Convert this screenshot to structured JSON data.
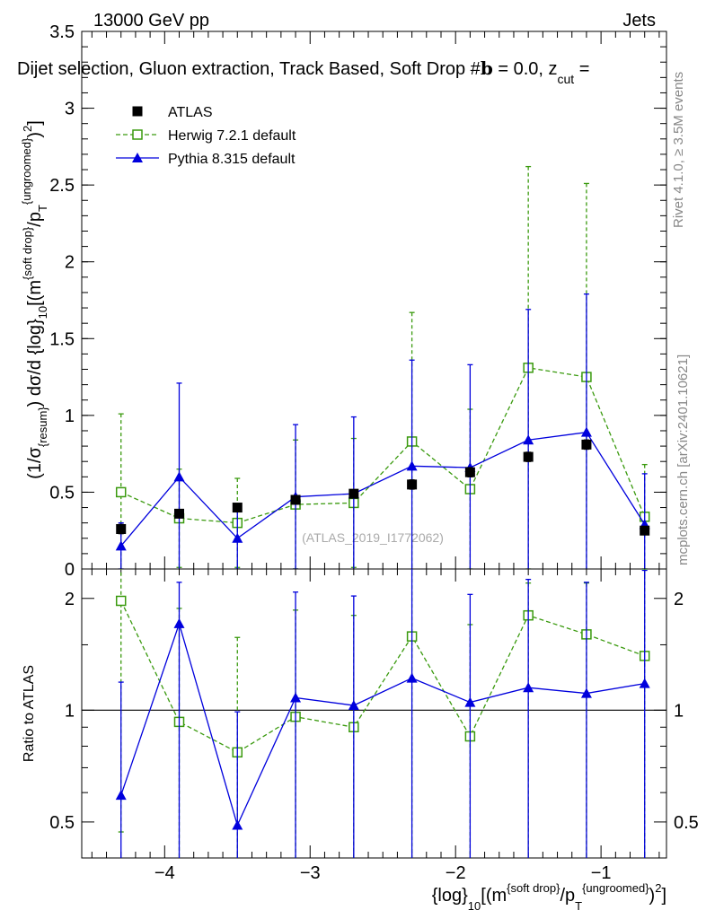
{
  "header": {
    "left": "13000 GeV pp",
    "right": "Jets",
    "subtitle": "Dijet selection, Gluon extraction, Track Based, Soft Drop #b = 0.0, z_cut =",
    "subtitle_main": "Dijet selection, Gluon extraction, Track Based, Soft Drop #",
    "subtitle_beta": "b",
    "subtitle_tail": " = 0.0, z",
    "subtitle_cut": "cut",
    "subtitle_eq": " ="
  },
  "side": {
    "rivet": "Rivet 4.1.0, ≥ 3.5M events",
    "mcplots": "mcplots.cern.ch [arXiv:2401.10621]"
  },
  "watermark": "(ATLAS_2019_I1772062)",
  "colors": {
    "atlas": "#000000",
    "herwig": "#3a9a0e",
    "pythia": "#0000dd",
    "reference": "#000000"
  },
  "chart_data": [
    {
      "type": "scatter",
      "panel": "main",
      "ylabel": "(1/σ_{resum}) dσ/d {log}_10[(m^{soft drop}/p_T^{ungroomed})^2]",
      "ylabel_parts": {
        "a": "(1/σ",
        "a_sub": "{resum}",
        "b": ") dσ/d {log}",
        "b_sub": "10",
        "c": "[(m",
        "c_sup": "{soft drop}",
        "d": "/p",
        "d_sub": "T",
        "d_sup": "{ungroomed}",
        "e": ")",
        "e_sup": "2",
        "f": "]"
      },
      "xlim": [
        -4.57,
        -0.55
      ],
      "ylim": [
        0,
        3.5
      ],
      "yticks": [
        0,
        0.5,
        1,
        1.5,
        2,
        2.5,
        3,
        3.5
      ],
      "ytick_labels": [
        "0",
        "0.5",
        "1",
        "1.5",
        "2",
        "2.5",
        "3",
        "3.5"
      ],
      "legend": [
        "ATLAS",
        "Herwig 7.2.1 default",
        "Pythia 8.315 default"
      ],
      "legend_position": "top-left",
      "x": [
        -4.3,
        -3.9,
        -3.5,
        -3.1,
        -2.7,
        -2.3,
        -1.9,
        -1.5,
        -1.1,
        -0.7
      ],
      "series": [
        {
          "name": "ATLAS",
          "style": "filled-square",
          "values": [
            0.26,
            0.36,
            0.4,
            0.45,
            0.49,
            0.55,
            0.63,
            0.73,
            0.81,
            0.25
          ],
          "errors": [
            0.03,
            0.02,
            0.02,
            0.02,
            0.02,
            0.03,
            0.03,
            0.03,
            0.03,
            0.02
          ]
        },
        {
          "name": "Herwig 7.2.1 default",
          "style": "open-square-dashed",
          "values": [
            0.5,
            0.33,
            0.3,
            0.42,
            0.43,
            0.83,
            0.52,
            1.31,
            1.25,
            0.34
          ],
          "errors": [
            0.51,
            0.32,
            0.29,
            0.42,
            0.42,
            0.84,
            0.52,
            1.31,
            1.26,
            0.34
          ]
        },
        {
          "name": "Pythia 8.315 default",
          "style": "filled-triangle-solid",
          "values": [
            0.15,
            0.6,
            0.2,
            0.47,
            0.49,
            0.67,
            0.66,
            0.84,
            0.89,
            0.29
          ],
          "errors": [
            0.15,
            0.61,
            0.2,
            0.47,
            0.5,
            0.69,
            0.67,
            0.85,
            0.9,
            0.33
          ]
        }
      ]
    },
    {
      "type": "scatter",
      "panel": "ratio",
      "ylabel": "Ratio to ATLAS",
      "xlabel": "{log}_10[(m^{soft drop}/p_T^{ungroomed})^2]",
      "xlabel_parts": {
        "a": "{log}",
        "a_sub": "10",
        "b": "[(m",
        "b_sup": "{soft drop}",
        "c": "/p",
        "c_sub": "T",
        "c_sup": "{ungroomed}",
        "d": ")",
        "d_sup": "2",
        "e": "]"
      },
      "xlim": [
        -4.57,
        -0.55
      ],
      "ylim": [
        0.4,
        2.4
      ],
      "yscale": "log",
      "xticks": [
        -4,
        -3,
        -2,
        -1
      ],
      "xtick_labels": [
        "−4",
        "−3",
        "−2",
        "−1"
      ],
      "yticks": [
        0.5,
        1,
        2
      ],
      "ytick_labels": [
        "0.5",
        "1",
        "2"
      ],
      "reference": 1,
      "x": [
        -4.3,
        -3.9,
        -3.5,
        -3.1,
        -2.7,
        -2.3,
        -1.9,
        -1.5,
        -1.1,
        -0.7
      ],
      "series": [
        {
          "name": "Herwig 7.2.1 default",
          "style": "open-square-dashed",
          "values": [
            1.97,
            0.93,
            0.77,
            0.96,
            0.9,
            1.58,
            0.85,
            1.8,
            1.6,
            1.4
          ],
          "err_lo": [
            1.5,
            0.93,
            0.77,
            0.96,
            0.9,
            1.58,
            0.85,
            1.8,
            1.6,
            1.4
          ],
          "err_hi": [
            1.5,
            0.95,
            0.8,
            0.9,
            0.9,
            1.5,
            0.85,
            0.4,
            0.6,
            1.0
          ]
        },
        {
          "name": "Pythia 8.315 default",
          "style": "filled-triangle-solid",
          "values": [
            0.59,
            1.71,
            0.49,
            1.08,
            1.03,
            1.22,
            1.05,
            1.15,
            1.11,
            1.18
          ],
          "err_lo": [
            0.59,
            1.71,
            0.49,
            1.08,
            1.03,
            1.22,
            1.05,
            1.15,
            1.11,
            1.18
          ],
          "err_hi": [
            0.6,
            0.5,
            0.5,
            1.0,
            1.0,
            1.2,
            1.0,
            1.1,
            1.1,
            1.2
          ]
        }
      ]
    }
  ]
}
